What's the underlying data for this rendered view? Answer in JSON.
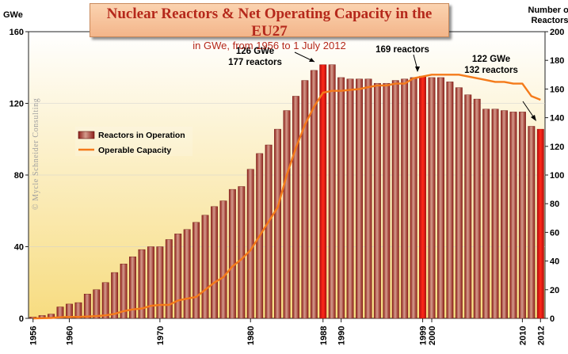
{
  "chart_data": {
    "type": "bar",
    "title": "Nuclear Reactors & Net Operating Capacity in the EU27",
    "subtitle": "in GWe, from 1956 to 1 July 2012",
    "ylabel_left": "GWe",
    "ylabel_right": "Number of Reactors",
    "ylim_left": [
      0,
      160
    ],
    "ylim_right": [
      0,
      200
    ],
    "left_ticks": [
      "0",
      "40",
      "80",
      "120",
      "160"
    ],
    "right_ticks": [
      "0",
      "20",
      "40",
      "60",
      "80",
      "100",
      "120",
      "140",
      "160",
      "180",
      "200"
    ],
    "xtick_labels": [
      {
        "year": 1956,
        "label": "1956"
      },
      {
        "year": 1960,
        "label": "1960"
      },
      {
        "year": 1970,
        "label": "1970"
      },
      {
        "year": 1980,
        "label": "1980"
      },
      {
        "year": 1988,
        "label": "1988"
      },
      {
        "year": 1990,
        "label": "1990"
      },
      {
        "year": 1999,
        "label": "1999"
      },
      {
        "year": 2000,
        "label": "2000"
      },
      {
        "year": 2010,
        "label": "2010"
      },
      {
        "year": 2012,
        "label": "2012"
      }
    ],
    "watermark": "© Mycle Schneider Consulting",
    "legend": {
      "bars": "Reactors in Operation",
      "line": "Operable Capacity"
    },
    "annotations": {
      "peak_1988": {
        "line1": "126 GWe",
        "line2": "177 reactors"
      },
      "peak_1999": {
        "line1": "169 reactors"
      },
      "end_2012": {
        "line1": "122 GWe",
        "line2": "132 reactors"
      }
    },
    "highlight_years": [
      1988,
      1999,
      2012
    ],
    "years": [
      1956,
      1957,
      1958,
      1959,
      1960,
      1961,
      1962,
      1963,
      1964,
      1965,
      1966,
      1967,
      1968,
      1969,
      1970,
      1971,
      1972,
      1973,
      1974,
      1975,
      1976,
      1977,
      1978,
      1979,
      1980,
      1981,
      1982,
      1983,
      1984,
      1985,
      1986,
      1987,
      1988,
      1989,
      1990,
      1991,
      1992,
      1993,
      1994,
      1995,
      1996,
      1997,
      1998,
      1999,
      2000,
      2001,
      2002,
      2003,
      2004,
      2005,
      2006,
      2007,
      2008,
      2009,
      2010,
      2011,
      2012
    ],
    "series": [
      {
        "name": "Reactors in Operation",
        "axis": "right",
        "values": [
          1,
          2,
          3,
          8,
          10,
          11,
          17,
          20,
          25,
          32,
          38,
          43,
          48,
          50,
          50,
          55,
          59,
          62,
          67,
          72,
          78,
          82,
          90,
          92,
          104,
          115,
          121,
          132,
          145,
          155,
          166,
          173,
          177,
          177,
          168,
          167,
          167,
          167,
          164,
          164,
          166,
          167,
          168,
          169,
          168,
          168,
          165,
          161,
          156,
          153,
          146,
          146,
          145,
          144,
          144,
          134,
          132
        ]
      },
      {
        "name": "Operable Capacity",
        "axis": "left",
        "values": [
          0,
          0.1,
          0.2,
          0.6,
          0.8,
          0.8,
          1.0,
          1.3,
          1.7,
          2.5,
          4,
          5,
          5.5,
          7,
          7.5,
          7.5,
          10,
          11,
          12,
          16,
          20,
          23,
          29,
          33,
          38,
          46,
          54,
          62,
          80,
          95,
          108,
          118,
          126,
          127,
          127,
          127.5,
          128,
          129,
          130,
          130,
          131,
          131,
          134,
          135,
          136,
          136,
          136,
          136,
          135,
          134,
          133,
          132,
          132,
          131,
          131,
          124,
          122
        ]
      }
    ]
  }
}
